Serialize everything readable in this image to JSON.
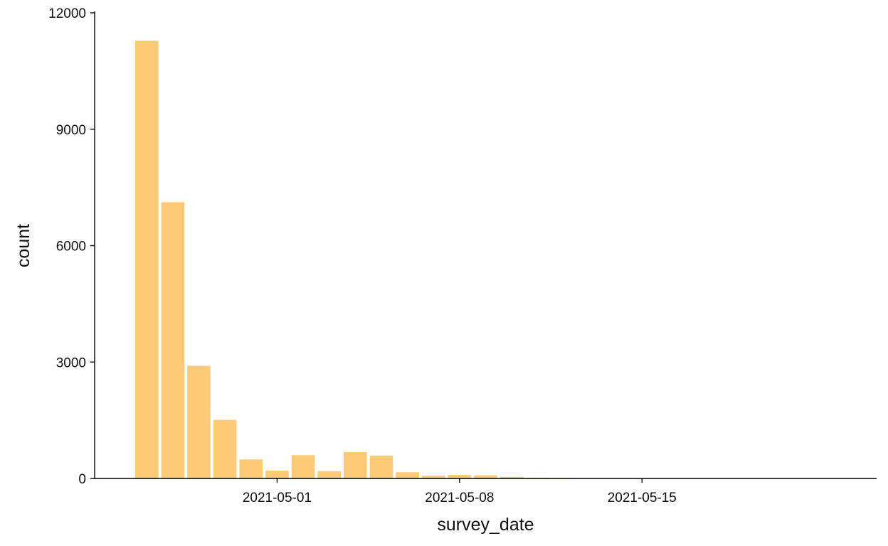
{
  "chart_data": {
    "type": "bar",
    "title": "",
    "xlabel": "survey_date",
    "ylabel": "count",
    "bar_color": "#FDCA77",
    "grid": false,
    "legend": "none",
    "x": [
      "2021-04-26",
      "2021-04-27",
      "2021-04-28",
      "2021-04-29",
      "2021-04-30",
      "2021-05-01",
      "2021-05-02",
      "2021-05-03",
      "2021-05-04",
      "2021-05-05",
      "2021-05-06",
      "2021-05-07",
      "2021-05-08",
      "2021-05-09",
      "2021-05-10",
      "2021-05-11",
      "2021-05-12",
      "2021-05-13",
      "2021-05-14",
      "2021-05-15",
      "2021-05-16",
      "2021-05-17",
      "2021-05-18",
      "2021-05-19",
      "2021-05-20",
      "2021-05-21",
      "2021-05-22",
      "2021-05-23"
    ],
    "values": [
      11280,
      7120,
      2900,
      1510,
      490,
      200,
      600,
      190,
      680,
      590,
      160,
      70,
      90,
      80,
      40,
      20,
      15,
      8,
      5,
      3,
      2,
      2,
      1,
      1,
      1,
      1,
      1,
      1
    ],
    "xlim": [
      "2021-04-24",
      "2021-05-24"
    ],
    "ylim": [
      0,
      12000
    ],
    "yticks": [
      0,
      3000,
      6000,
      9000,
      12000
    ],
    "ytick_labels": [
      "0",
      "3000",
      "6000",
      "9000",
      "12000"
    ],
    "xticks": [
      "2021-05-01",
      "2021-05-08",
      "2021-05-15"
    ],
    "xtick_labels": [
      "2021-05-01",
      "2021-05-08",
      "2021-05-15"
    ]
  }
}
